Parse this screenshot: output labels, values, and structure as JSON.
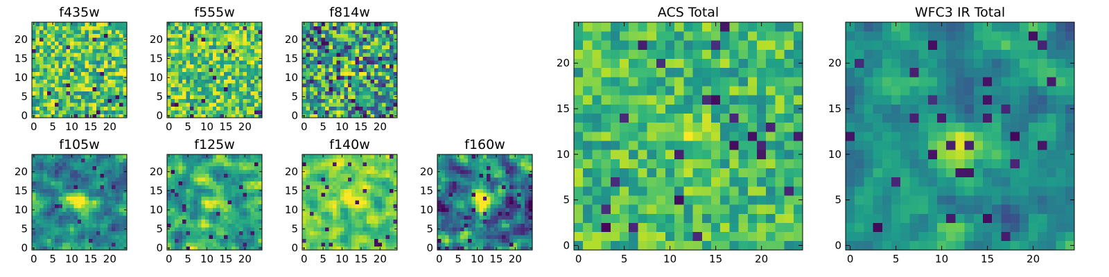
{
  "figure": {
    "description_colormap": "viridis",
    "colors": {
      "viridis_stops": [
        "#440154",
        "#482878",
        "#3e4989",
        "#31688e",
        "#26828e",
        "#1f9e89",
        "#35b779",
        "#6ece58",
        "#b5de2b",
        "#fde725"
      ]
    }
  },
  "chart_data": [
    {
      "type": "heatmap",
      "title": "f435w",
      "grid": [
        25,
        25
      ],
      "xlim": [
        -0.5,
        24.5
      ],
      "ylim": [
        -0.5,
        24.5
      ],
      "xticks": [
        "0",
        "5",
        "10",
        "15",
        "20"
      ],
      "yticks": [
        "0",
        "5",
        "10",
        "15",
        "20"
      ],
      "vrange": [
        0.0,
        1.0
      ]
    },
    {
      "type": "heatmap",
      "title": "f555w",
      "grid": [
        25,
        25
      ],
      "xlim": [
        -0.5,
        24.5
      ],
      "ylim": [
        -0.5,
        24.5
      ],
      "xticks": [
        "0",
        "5",
        "10",
        "15",
        "20"
      ],
      "yticks": [
        "0",
        "5",
        "10",
        "15",
        "20"
      ],
      "vrange": [
        0.0,
        1.0
      ]
    },
    {
      "type": "heatmap",
      "title": "f814w",
      "grid": [
        25,
        25
      ],
      "xlim": [
        -0.5,
        24.5
      ],
      "ylim": [
        -0.5,
        24.5
      ],
      "xticks": [
        "0",
        "5",
        "10",
        "15",
        "20"
      ],
      "yticks": [
        "0",
        "5",
        "10",
        "15",
        "20"
      ],
      "vrange": [
        0.0,
        1.0
      ]
    },
    {
      "type": "heatmap",
      "title": "f105w",
      "grid": [
        25,
        25
      ],
      "xlim": [
        -0.5,
        24.5
      ],
      "ylim": [
        -0.5,
        24.5
      ],
      "xticks": [
        "0",
        "5",
        "10",
        "15",
        "20"
      ],
      "yticks": [
        "0",
        "5",
        "10",
        "15",
        "20"
      ],
      "vrange": [
        0.0,
        1.0
      ]
    },
    {
      "type": "heatmap",
      "title": "f125w",
      "grid": [
        25,
        25
      ],
      "xlim": [
        -0.5,
        24.5
      ],
      "ylim": [
        -0.5,
        24.5
      ],
      "xticks": [
        "0",
        "5",
        "10",
        "15",
        "20"
      ],
      "yticks": [
        "0",
        "5",
        "10",
        "15",
        "20"
      ],
      "vrange": [
        0.0,
        1.0
      ]
    },
    {
      "type": "heatmap",
      "title": "f140w",
      "grid": [
        25,
        25
      ],
      "xlim": [
        -0.5,
        24.5
      ],
      "ylim": [
        -0.5,
        24.5
      ],
      "xticks": [
        "0",
        "5",
        "10",
        "15",
        "20"
      ],
      "yticks": [
        "0",
        "5",
        "10",
        "15",
        "20"
      ],
      "vrange": [
        0.0,
        1.0
      ]
    },
    {
      "type": "heatmap",
      "title": "f160w",
      "grid": [
        25,
        25
      ],
      "xlim": [
        -0.5,
        24.5
      ],
      "ylim": [
        -0.5,
        24.5
      ],
      "xticks": [
        "0",
        "5",
        "10",
        "15",
        "20"
      ],
      "yticks": [
        "0",
        "5",
        "10",
        "15",
        "20"
      ],
      "vrange": [
        0.0,
        1.0
      ]
    },
    {
      "type": "heatmap",
      "title": "ACS Total",
      "grid": [
        25,
        25
      ],
      "xlim": [
        -0.5,
        24.5
      ],
      "ylim": [
        -0.5,
        24.5
      ],
      "xticks": [
        "0",
        "5",
        "10",
        "15",
        "20"
      ],
      "yticks": [
        "0",
        "5",
        "10",
        "15",
        "20"
      ],
      "vrange": [
        0.0,
        1.0
      ]
    },
    {
      "type": "heatmap",
      "title": "WFC3 IR Total",
      "grid": [
        25,
        25
      ],
      "xlim": [
        -0.5,
        24.5
      ],
      "ylim": [
        -0.5,
        24.5
      ],
      "xticks": [
        "0",
        "5",
        "10",
        "15",
        "20"
      ],
      "yticks": [
        "0",
        "5",
        "10",
        "15",
        "20"
      ],
      "vrange": [
        0.0,
        1.0
      ]
    }
  ]
}
